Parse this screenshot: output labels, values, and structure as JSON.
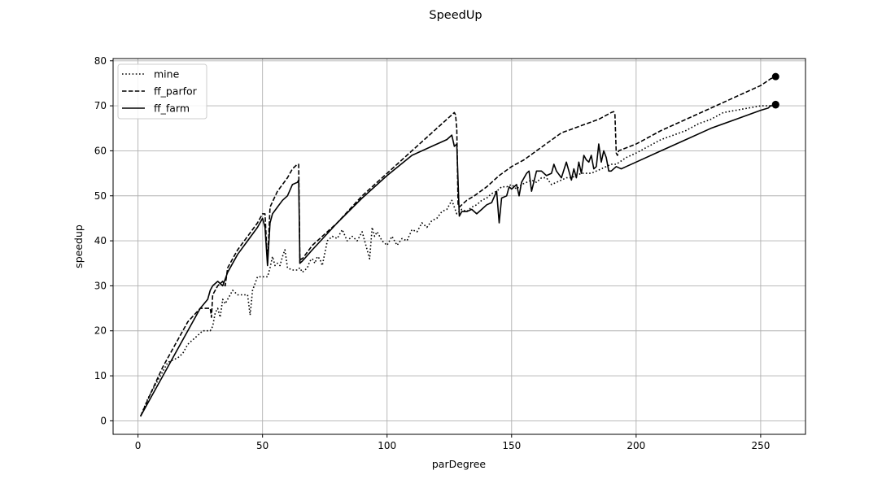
{
  "chart_data": {
    "type": "line",
    "title": "SpeedUp",
    "xlabel": "parDegree",
    "ylabel": "speedup",
    "xlim": [
      -10,
      268
    ],
    "ylim": [
      -3,
      80.5
    ],
    "xticks": [
      0,
      50,
      100,
      150,
      200,
      250
    ],
    "yticks": [
      0,
      10,
      20,
      30,
      40,
      50,
      60,
      70,
      80
    ],
    "grid": true,
    "legend_position": "top-left",
    "series": [
      {
        "name": "mine",
        "style": "dotted",
        "color": "#000000",
        "x": [
          1,
          4,
          8,
          12,
          16,
          18,
          20,
          22,
          24,
          26,
          28,
          29,
          30,
          31,
          32,
          33,
          34,
          35,
          36,
          37,
          38,
          40,
          42,
          44,
          45,
          46,
          48,
          50,
          52,
          53,
          54,
          55,
          56,
          57,
          58,
          59,
          60,
          62,
          64,
          65,
          66,
          68,
          69,
          70,
          71,
          72,
          73,
          74,
          76,
          78,
          80,
          82,
          84,
          86,
          88,
          90,
          92,
          93,
          94,
          95,
          96,
          98,
          100,
          102,
          104,
          106,
          108,
          110,
          112,
          114,
          116,
          118,
          120,
          122,
          124,
          126,
          128,
          130,
          132,
          134,
          136,
          138,
          140,
          142,
          144,
          146,
          148,
          150,
          152,
          154,
          156,
          158,
          160,
          162,
          164,
          166,
          168,
          170,
          172,
          174,
          176,
          178,
          180,
          182,
          184,
          186,
          188,
          190,
          192,
          196,
          200,
          205,
          210,
          215,
          220,
          225,
          230,
          235,
          240,
          245,
          250,
          253,
          254,
          255,
          256
        ],
        "values": [
          1,
          5,
          9,
          13,
          14,
          15,
          17,
          18,
          19,
          20,
          20,
          20,
          21,
          24,
          25,
          23,
          27,
          26,
          27,
          28,
          29,
          28,
          28,
          28,
          23.5,
          29,
          32,
          32,
          32,
          34,
          36.5,
          34.5,
          35,
          34.5,
          36.5,
          38,
          34,
          33.5,
          33.5,
          34,
          33,
          34,
          35.5,
          36,
          35,
          36.5,
          36,
          34.5,
          40,
          41,
          40.5,
          42.5,
          40,
          41,
          40,
          42,
          38,
          36,
          43,
          41,
          42,
          40,
          39,
          41,
          39,
          40.5,
          40,
          42.5,
          42,
          44,
          43,
          44.5,
          45,
          46.5,
          47,
          49,
          46,
          47,
          46.5,
          47.5,
          48,
          49,
          49.5,
          50.5,
          51,
          52,
          52,
          52.5,
          51.5,
          52.5,
          53,
          53.5,
          53,
          54,
          54,
          52.5,
          53,
          53.5,
          54,
          54,
          54.5,
          55,
          55,
          55,
          55.5,
          56,
          56.5,
          57,
          57,
          58.5,
          59.5,
          61,
          62.5,
          63.5,
          64.5,
          66,
          67,
          68.5,
          69,
          69.5,
          70,
          70,
          70,
          70.2,
          70.3
        ]
      },
      {
        "name": "ff_parfor",
        "style": "dashed",
        "color": "#000000",
        "x": [
          1,
          5,
          10,
          15,
          20,
          25,
          29,
          29.5,
          30,
          32,
          34,
          35,
          36,
          37,
          38,
          40,
          44,
          48,
          50,
          51,
          52,
          53,
          56,
          60,
          62,
          64,
          64.5,
          65,
          65.5,
          66,
          68,
          70,
          80,
          90,
          100,
          110,
          118,
          124,
          126,
          127,
          127.5,
          128,
          128.5,
          129,
          132,
          135,
          140,
          145,
          150,
          155,
          160,
          165,
          170,
          175,
          180,
          185,
          190,
          191,
          191.5,
          192,
          192.5,
          193,
          200,
          210,
          220,
          230,
          240,
          250,
          254,
          256
        ],
        "values": [
          1,
          6,
          12,
          17,
          22,
          25,
          25,
          23,
          28,
          30,
          31,
          30,
          34,
          35,
          36,
          38,
          41,
          44,
          46,
          46,
          35,
          47.5,
          51,
          54,
          56,
          57,
          57,
          35,
          36,
          36,
          37.5,
          39,
          44,
          50,
          55,
          60,
          64,
          67,
          68,
          68.5,
          68,
          65,
          48,
          47.5,
          49,
          50,
          52,
          54.5,
          56.5,
          58,
          60,
          62,
          64,
          65,
          66,
          67,
          68.5,
          68.7,
          68,
          59.5,
          59,
          60,
          61.5,
          64.5,
          67,
          69.5,
          72,
          74.5,
          76,
          76.5
        ]
      },
      {
        "name": "ff_farm",
        "style": "solid",
        "color": "#000000",
        "x": [
          1,
          5,
          10,
          15,
          20,
          25,
          28,
          29,
          30,
          32,
          34,
          35,
          36,
          40,
          44,
          48,
          50,
          51,
          52,
          53,
          54,
          56,
          58,
          60,
          62,
          64,
          64.5,
          65,
          66,
          70,
          80,
          90,
          100,
          110,
          118,
          122,
          124,
          126,
          127,
          128,
          129,
          130,
          132,
          134,
          136,
          138,
          140,
          142,
          144,
          145,
          146,
          148,
          149,
          150,
          152,
          153,
          154,
          156,
          157,
          158,
          160,
          162,
          164,
          166,
          167,
          168,
          170,
          172,
          174,
          175,
          176,
          177,
          178,
          179,
          180,
          181,
          182,
          183,
          184,
          185,
          186,
          187,
          188,
          189,
          190,
          192,
          194,
          196,
          200,
          210,
          220,
          230,
          240,
          250,
          253,
          254,
          255,
          256
        ],
        "values": [
          1,
          5,
          10,
          15,
          20,
          25,
          27,
          29,
          30,
          31,
          30,
          31.5,
          33,
          37,
          40,
          43,
          45,
          43,
          34.5,
          44,
          46,
          47.5,
          49,
          50,
          52.5,
          53,
          53.5,
          35,
          35.5,
          38,
          44,
          49.5,
          54.5,
          59,
          61,
          62,
          62.5,
          63.5,
          61,
          61.5,
          45.5,
          46.5,
          46.5,
          47,
          46,
          47,
          48,
          48.5,
          51,
          44,
          49.5,
          50,
          52,
          51.5,
          52.5,
          50,
          53,
          55,
          55.5,
          51,
          55.5,
          55.5,
          54.5,
          55,
          57,
          55.5,
          54,
          57.5,
          53.5,
          56,
          54,
          57.5,
          55,
          59,
          58,
          57.5,
          59,
          56,
          56.5,
          61.5,
          57.5,
          60,
          58.5,
          55.5,
          55.5,
          56.5,
          56,
          56.5,
          57.5,
          60,
          62.5,
          65,
          67,
          69,
          69.5,
          70,
          70,
          70.2
        ]
      }
    ]
  }
}
